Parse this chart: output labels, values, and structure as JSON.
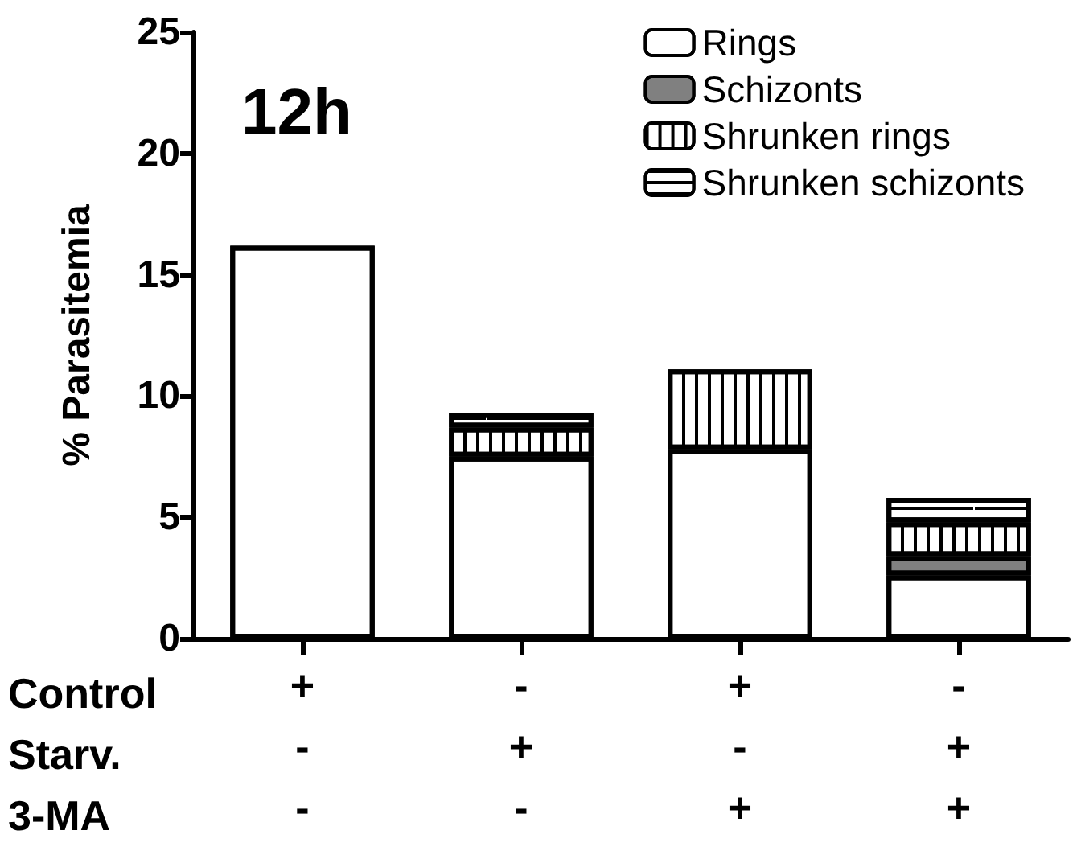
{
  "chart_data": {
    "type": "bar",
    "stacked": true,
    "ylabel": "% Parasitemia",
    "categories": [
      "+\n-\n-",
      "-\n+\n-",
      "+\n-\n+",
      "-\n+\n+"
    ],
    "series": [
      {
        "name": "Rings",
        "color": "#ffffff",
        "values": [
          16.2,
          7.5,
          7.8,
          2.6
        ]
      },
      {
        "name": "Schizonts",
        "color": "#808080",
        "values": [
          null,
          null,
          null,
          0.8
        ]
      },
      {
        "name": "Shrunken rings",
        "color": "#ffffff",
        "values": [
          null,
          1.2,
          3.3,
          1.4
        ]
      },
      {
        "name": "Shrunken schizonts",
        "color": "#ffffff",
        "values": [
          null,
          0.6,
          null,
          1.0
        ]
      }
    ],
    "ylim": [
      0,
      25
    ],
    "yticks": [
      0,
      5,
      10,
      15,
      20,
      25
    ],
    "grid": false,
    "legend": "top right",
    "annotations": [
      "12h",
      "Control",
      "Starv.",
      "3-MA"
    ]
  }
}
